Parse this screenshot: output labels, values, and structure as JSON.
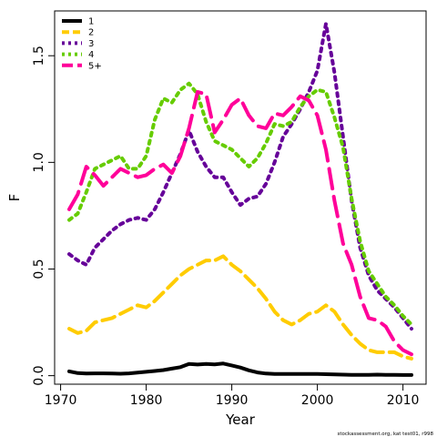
{
  "chart_data": {
    "type": "line",
    "xlabel": "Year",
    "ylabel": "F",
    "xlim": [
      1969.3,
      2012.7
    ],
    "ylim": [
      -0.04,
      1.71
    ],
    "xticks": [
      "1970",
      "1980",
      "1990",
      "2000",
      "2010"
    ],
    "yticks": [
      "0.0",
      "0.5",
      "1.0",
      "1.5"
    ],
    "grid": false,
    "legend_position": "top-left",
    "x": [
      1971,
      1972,
      1973,
      1974,
      1975,
      1976,
      1977,
      1978,
      1979,
      1980,
      1981,
      1982,
      1983,
      1984,
      1985,
      1986,
      1987,
      1988,
      1989,
      1990,
      1991,
      1992,
      1993,
      1994,
      1995,
      1996,
      1997,
      1998,
      1999,
      2000,
      2001,
      2002,
      2003,
      2004,
      2005,
      2006,
      2007,
      2008,
      2009,
      2010,
      2011
    ],
    "series": [
      {
        "name": "1",
        "color": "#000000",
        "dash": "solid",
        "values": [
          0.02,
          0.012,
          0.01,
          0.011,
          0.011,
          0.01,
          0.009,
          0.011,
          0.014,
          0.018,
          0.022,
          0.026,
          0.033,
          0.04,
          0.055,
          0.052,
          0.055,
          0.053,
          0.057,
          0.048,
          0.038,
          0.025,
          0.015,
          0.01,
          0.008,
          0.008,
          0.008,
          0.008,
          0.008,
          0.008,
          0.007,
          0.006,
          0.005,
          0.004,
          0.004,
          0.004,
          0.005,
          0.004,
          0.004,
          0.003,
          0.003
        ]
      },
      {
        "name": "2",
        "color": "#ffcc00",
        "dash": "dash",
        "values": [
          0.22,
          0.2,
          0.21,
          0.25,
          0.26,
          0.27,
          0.29,
          0.31,
          0.33,
          0.32,
          0.35,
          0.39,
          0.43,
          0.47,
          0.5,
          0.52,
          0.54,
          0.54,
          0.56,
          0.52,
          0.49,
          0.45,
          0.41,
          0.36,
          0.3,
          0.26,
          0.24,
          0.26,
          0.29,
          0.3,
          0.33,
          0.3,
          0.24,
          0.19,
          0.15,
          0.12,
          0.11,
          0.11,
          0.11,
          0.09,
          0.08
        ]
      },
      {
        "name": "3",
        "color": "#660099",
        "dash": "dot",
        "values": [
          0.57,
          0.54,
          0.52,
          0.6,
          0.64,
          0.68,
          0.71,
          0.73,
          0.74,
          0.73,
          0.78,
          0.86,
          0.95,
          1.04,
          1.15,
          1.05,
          0.98,
          0.93,
          0.93,
          0.86,
          0.8,
          0.83,
          0.84,
          0.9,
          1.0,
          1.12,
          1.18,
          1.25,
          1.33,
          1.43,
          1.65,
          1.42,
          1.12,
          0.82,
          0.6,
          0.47,
          0.4,
          0.36,
          0.32,
          0.27,
          0.22
        ]
      },
      {
        "name": "4",
        "color": "#66cc00",
        "dash": "dot",
        "values": [
          0.73,
          0.76,
          0.86,
          0.97,
          0.99,
          1.01,
          1.03,
          0.97,
          0.97,
          1.03,
          1.2,
          1.3,
          1.28,
          1.34,
          1.37,
          1.32,
          1.19,
          1.1,
          1.08,
          1.06,
          1.02,
          0.98,
          1.02,
          1.09,
          1.18,
          1.17,
          1.19,
          1.26,
          1.31,
          1.34,
          1.33,
          1.21,
          1.07,
          0.83,
          0.63,
          0.49,
          0.43,
          0.37,
          0.33,
          0.28,
          0.24
        ]
      },
      {
        "name": "5+",
        "color": "#ff0099",
        "dash": "longdash",
        "values": [
          0.78,
          0.85,
          0.98,
          0.94,
          0.89,
          0.93,
          0.97,
          0.95,
          0.93,
          0.94,
          0.97,
          0.99,
          0.95,
          1.03,
          1.16,
          1.33,
          1.32,
          1.14,
          1.2,
          1.27,
          1.3,
          1.22,
          1.17,
          1.16,
          1.23,
          1.22,
          1.26,
          1.31,
          1.29,
          1.22,
          1.06,
          0.82,
          0.62,
          0.52,
          0.37,
          0.27,
          0.26,
          0.23,
          0.16,
          0.12,
          0.1
        ]
      }
    ]
  },
  "footer": "stockassessment.org, kat test01, r998"
}
